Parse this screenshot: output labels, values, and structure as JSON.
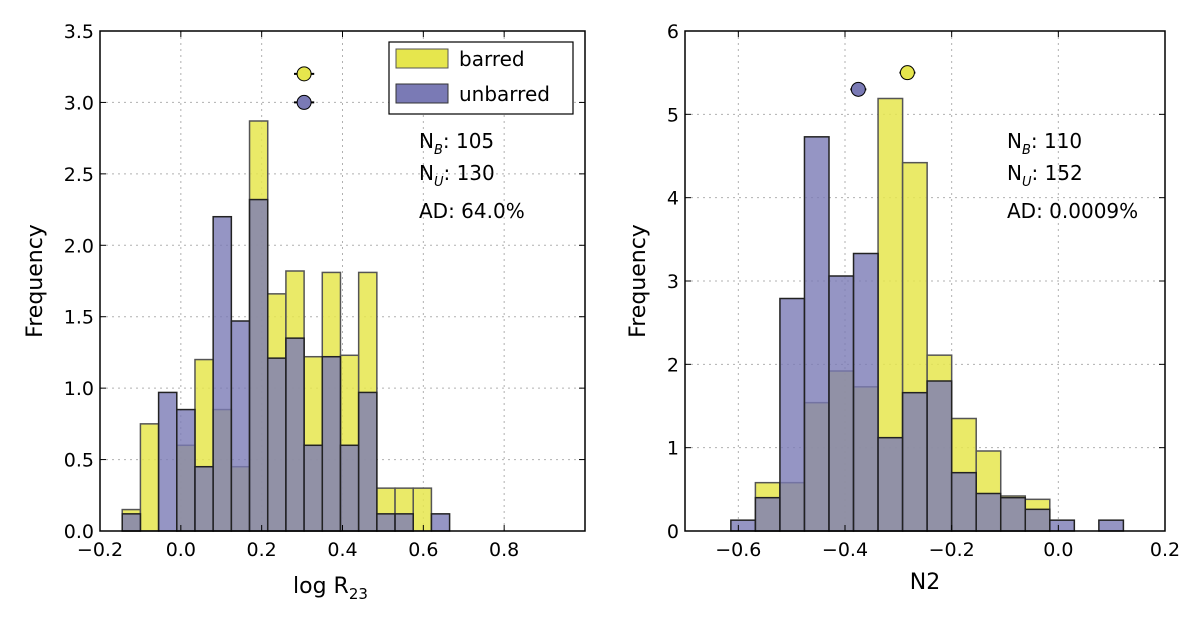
{
  "chart_data": [
    {
      "type": "histogram",
      "xlabel_main": "log R",
      "xlabel_sub": "23",
      "ylabel": "Frequency",
      "xlim": [
        -0.2,
        1.0
      ],
      "ylim": [
        0,
        3.5
      ],
      "xticks": [
        -0.2,
        0.0,
        0.2,
        0.4,
        0.6,
        0.8
      ],
      "xtick_labels": [
        "−0.2",
        "0.0",
        "0.2",
        "0.4",
        "0.6",
        "0.8"
      ],
      "yticks": [
        0.0,
        0.5,
        1.0,
        1.5,
        2.0,
        2.5,
        3.0,
        3.5
      ],
      "ytick_labels": [
        "0.0",
        "0.5",
        "1.0",
        "1.5",
        "2.0",
        "2.5",
        "3.0",
        "3.5"
      ],
      "bin_edges": [
        -0.145,
        -0.1,
        -0.055,
        -0.01,
        0.035,
        0.08,
        0.125,
        0.17,
        0.215,
        0.26,
        0.305,
        0.35,
        0.395,
        0.44,
        0.485,
        0.53,
        0.575,
        0.62,
        0.665,
        0.71,
        0.755,
        0.8,
        0.845,
        0.89
      ],
      "series": [
        {
          "name": "barred",
          "color": "#e6e64d",
          "values": [
            0.15,
            0.75,
            0.0,
            0.6,
            1.2,
            0.85,
            0.45,
            2.87,
            1.66,
            1.82,
            1.22,
            1.81,
            1.23,
            1.81,
            0.3,
            0.3,
            0.3,
            0.0,
            0.0,
            0.0,
            0.0,
            0.0,
            0.0
          ]
        },
        {
          "name": "unbarred",
          "color": "#7a7ab5",
          "values": [
            0.12,
            0.0,
            0.97,
            0.85,
            0.45,
            2.2,
            1.47,
            2.32,
            1.21,
            1.35,
            0.6,
            1.22,
            0.6,
            0.97,
            0.12,
            0.12,
            0.0,
            0.12,
            0.0,
            0.0,
            0.0,
            0.0,
            0.0
          ]
        }
      ],
      "markers": [
        {
          "series": "barred",
          "x": 0.305,
          "y": 3.2,
          "xerr": 0.025
        },
        {
          "series": "unbarred",
          "x": 0.305,
          "y": 3.0,
          "xerr": 0.025
        }
      ],
      "legend": {
        "position": "top-right",
        "entries": [
          "barred",
          "unbarred"
        ]
      },
      "annotations": {
        "nb_main": "N",
        "nb_sub": "B",
        "nb_value": ": 105",
        "nu_main": "N",
        "nu_sub": "U",
        "nu_value": ": 130",
        "ad": "AD: 64.0%"
      }
    },
    {
      "type": "histogram",
      "xlabel_main": "N2",
      "ylabel": "Frequency",
      "xlim": [
        -0.7,
        0.2
      ],
      "ylim": [
        0,
        6
      ],
      "xticks": [
        -0.6,
        -0.4,
        -0.2,
        0.0,
        0.2
      ],
      "xtick_labels": [
        "−0.6",
        "−0.4",
        "−0.2",
        "0.0",
        "0.2"
      ],
      "yticks": [
        0,
        1,
        2,
        3,
        4,
        5,
        6
      ],
      "ytick_labels": [
        "0",
        "1",
        "2",
        "3",
        "4",
        "5",
        "6"
      ],
      "bin_edges": [
        -0.614,
        -0.568,
        -0.522,
        -0.476,
        -0.43,
        -0.384,
        -0.338,
        -0.292,
        -0.246,
        -0.2,
        -0.154,
        -0.108,
        -0.062,
        -0.016,
        0.03,
        0.076,
        0.122,
        0.168
      ],
      "series": [
        {
          "name": "barred",
          "color": "#e6e64d",
          "values": [
            0.0,
            0.58,
            0.58,
            1.54,
            1.92,
            1.73,
            5.19,
            4.42,
            2.11,
            1.35,
            0.96,
            0.42,
            0.38,
            0.0,
            0.0,
            0.0,
            0.0
          ]
        },
        {
          "name": "unbarred",
          "color": "#7a7ab5",
          "values": [
            0.13,
            0.4,
            2.79,
            4.73,
            3.06,
            3.33,
            1.12,
            1.66,
            1.8,
            0.7,
            0.45,
            0.4,
            0.26,
            0.13,
            0.0,
            0.13,
            0.0
          ]
        }
      ],
      "markers": [
        {
          "series": "barred",
          "x": -0.283,
          "y": 5.5,
          "xerr": 0.015
        },
        {
          "series": "unbarred",
          "x": -0.375,
          "y": 5.3,
          "xerr": 0.015
        }
      ],
      "annotations": {
        "nb_main": "N",
        "nb_sub": "B",
        "nb_value": ": 110",
        "nu_main": "N",
        "nu_sub": "U",
        "nu_value": ": 152",
        "ad": "AD: 0.0009%"
      }
    }
  ]
}
